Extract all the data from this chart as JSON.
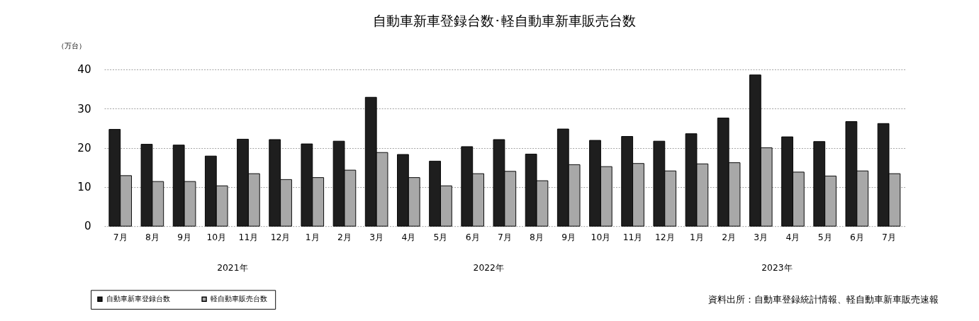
{
  "chart_data": {
    "type": "bar",
    "title": "自動車新車登録台数･軽自動車新車販売台数",
    "ylabel": "（万台）",
    "categories": [
      "7月",
      "8月",
      "9月",
      "10月",
      "11月",
      "12月",
      "1月",
      "2月",
      "3月",
      "4月",
      "5月",
      "6月",
      "7月",
      "8月",
      "9月",
      "10月",
      "11月",
      "12月",
      "1月",
      "2月",
      "3月",
      "4月",
      "5月",
      "6月",
      "7月"
    ],
    "series": [
      {
        "name": "自動車新車登録台数",
        "color": "#1e1e1e",
        "values": [
          24.7,
          20.9,
          20.7,
          17.9,
          22.2,
          22.1,
          21.0,
          21.7,
          32.9,
          18.3,
          16.6,
          20.3,
          22.1,
          18.4,
          24.8,
          21.9,
          22.9,
          21.7,
          23.6,
          27.6,
          38.6,
          22.8,
          21.6,
          26.7,
          26.2
        ]
      },
      {
        "name": "軽自動車販売台数",
        "color": "#a8a8a8",
        "values": [
          12.9,
          11.4,
          11.4,
          10.3,
          13.4,
          11.9,
          12.4,
          14.3,
          18.8,
          12.4,
          10.3,
          13.4,
          14.0,
          11.6,
          15.7,
          15.2,
          16.0,
          14.1,
          15.9,
          16.2,
          20.0,
          13.8,
          12.8,
          14.1,
          13.4
        ]
      }
    ],
    "ylim": [
      0,
      40
    ],
    "yticks": [
      0,
      10,
      20,
      30,
      40
    ],
    "grid": "y",
    "legend": "bottom left",
    "annotations": [
      "2021年",
      "2022年",
      "2023年",
      "資料出所：自動車登録統計情報、軽自動車新車販売速報"
    ]
  }
}
